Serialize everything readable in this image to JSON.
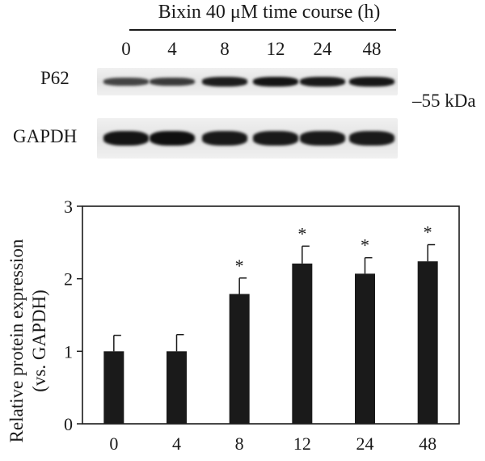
{
  "blot": {
    "title": "Bixin 40 μM time course (h)",
    "lanes": [
      "0",
      "4",
      "8",
      "12",
      "24",
      "48"
    ],
    "rows": [
      {
        "label": "P62",
        "intensity": [
          0.45,
          0.55,
          0.85,
          0.95,
          0.9,
          0.92
        ]
      },
      {
        "label": "GAPDH",
        "intensity": [
          0.95,
          1.0,
          0.9,
          0.9,
          0.9,
          0.88
        ]
      }
    ],
    "marker": "–55 kDa"
  },
  "chart_data": {
    "type": "bar",
    "categories": [
      "0",
      "4",
      "8",
      "12",
      "24",
      "48"
    ],
    "values": [
      1.0,
      1.0,
      1.79,
      2.21,
      2.07,
      2.24
    ],
    "errors": [
      0.22,
      0.23,
      0.22,
      0.24,
      0.22,
      0.23
    ],
    "significance": [
      "",
      "",
      "*",
      "*",
      "*",
      "*"
    ],
    "ylabel_line1": "Relative protein expression",
    "ylabel_line2": "(vs. GAPDH)",
    "xlabel": "",
    "ylim": [
      0,
      3
    ],
    "yticks": [
      0,
      1,
      2,
      3
    ],
    "bar_color": "#1a1a1a",
    "grid": false
  }
}
